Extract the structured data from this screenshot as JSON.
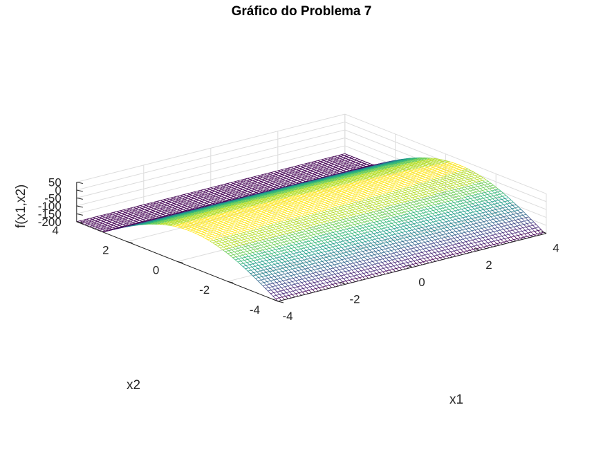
{
  "chart_data": {
    "type": "surface-mesh",
    "title": "Gráfico do Problema 7",
    "xlabel": "x1",
    "ylabel": "x2",
    "zlabel": "f(x1,x2)",
    "xlim": [
      -4,
      4
    ],
    "ylim": [
      -4,
      4
    ],
    "zlim": [
      -200,
      50
    ],
    "x_ticks": [
      "-4",
      "-2",
      "0",
      "2",
      "4"
    ],
    "y_ticks": [
      "-4",
      "-2",
      "0",
      "2",
      "4"
    ],
    "z_ticks": [
      "-200",
      "-150",
      "-100",
      "-50",
      "0",
      "50"
    ],
    "grid": true,
    "colormap": "viridis",
    "mesh_resolution": 80,
    "surface": {
      "z_min": -200,
      "z_max": 24,
      "sample_x": [
        -4,
        -2,
        0,
        2,
        4
      ],
      "sample_y": [
        -4,
        -2,
        0,
        2,
        4
      ],
      "sample_z": [
        [
          -65,
          -45,
          -40,
          -45,
          -65
        ],
        [
          -20,
          0,
          5,
          0,
          -20
        ],
        [
          -5,
          15,
          20,
          15,
          -5
        ],
        [
          0,
          20,
          24,
          20,
          0
        ],
        [
          -200,
          -180,
          -176,
          -180,
          -200
        ]
      ]
    }
  }
}
